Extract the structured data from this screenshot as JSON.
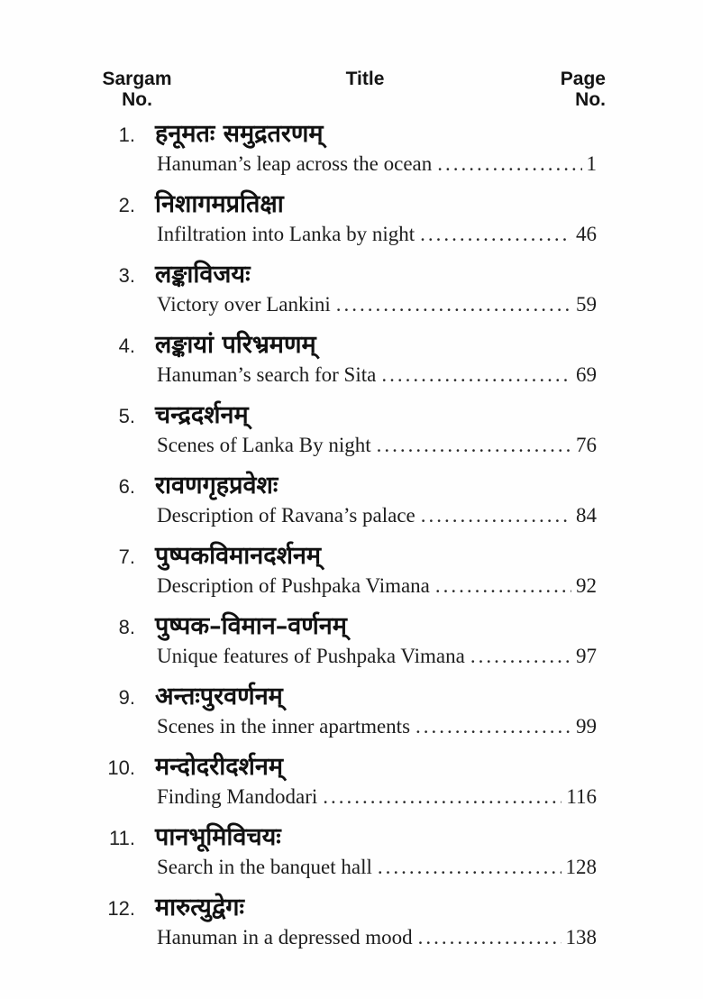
{
  "header": {
    "left_line1": "Sargam",
    "left_line2": "No.",
    "center": "Title",
    "right_line1": "Page",
    "right_line2": "No."
  },
  "entries": [
    {
      "num": "1.",
      "title_sanskrit": "हनूमतः समुद्रतरणम्",
      "title_english": "Hanuman’s leap across the ocean",
      "page": "1"
    },
    {
      "num": "2.",
      "title_sanskrit": "निशागमप्रतिक्षा",
      "title_english": "Infiltration into Lanka by night",
      "page": "46"
    },
    {
      "num": "3.",
      "title_sanskrit": "लङ्काविजयः",
      "title_english": "Victory over Lankini",
      "page": "59"
    },
    {
      "num": "4.",
      "title_sanskrit": "लङ्कायां परिभ्रमणम्",
      "title_english": "Hanuman’s search for Sita",
      "page": "69"
    },
    {
      "num": "5.",
      "title_sanskrit": "चन्द्रदर्शनम्",
      "title_english": "Scenes of Lanka By night",
      "page": "76"
    },
    {
      "num": "6.",
      "title_sanskrit": "रावणगृहप्रवेशः",
      "title_english": "Description of Ravana’s palace",
      "page": "84"
    },
    {
      "num": "7.",
      "title_sanskrit": "पुष्पकविमानदर्शनम्",
      "title_english": "Description of Pushpaka Vimana",
      "page": "92"
    },
    {
      "num": "8.",
      "title_sanskrit": "पुष्पक–विमान–वर्णनम्",
      "title_english": "Unique features of Pushpaka Vimana",
      "page": "97"
    },
    {
      "num": "9.",
      "title_sanskrit": "अन्तःपुरवर्णनम्",
      "title_english": "Scenes in the inner apartments",
      "page": "99"
    },
    {
      "num": "10.",
      "title_sanskrit": "मन्दोदरीदर्शनम्",
      "title_english": "Finding Mandodari",
      "page": "116"
    },
    {
      "num": "11.",
      "title_sanskrit": "पानभूमिविचयः",
      "title_english": "Search in the banquet hall",
      "page": "128"
    },
    {
      "num": "12.",
      "title_sanskrit": "मारुत्युद्वेगः",
      "title_english": "Hanuman in a depressed mood",
      "page": "138"
    }
  ]
}
